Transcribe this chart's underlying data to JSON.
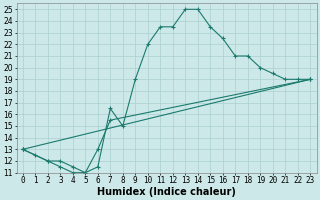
{
  "xlabel": "Humidex (Indice chaleur)",
  "xlim": [
    -0.5,
    23.5
  ],
  "ylim": [
    11,
    25.5
  ],
  "yticks": [
    11,
    12,
    13,
    14,
    15,
    16,
    17,
    18,
    19,
    20,
    21,
    22,
    23,
    24,
    25
  ],
  "xticks": [
    0,
    1,
    2,
    3,
    4,
    5,
    6,
    7,
    8,
    9,
    10,
    11,
    12,
    13,
    14,
    15,
    16,
    17,
    18,
    19,
    20,
    21,
    22,
    23
  ],
  "bg_color": "#cde8e8",
  "grid_color": "#aacfcf",
  "line_color": "#1a7a6e",
  "line1_x": [
    0,
    1,
    2,
    3,
    4,
    5,
    6,
    7,
    8,
    9,
    10,
    11,
    12,
    13,
    14,
    15,
    16,
    17,
    18,
    19,
    20,
    21,
    22,
    23
  ],
  "line1_y": [
    13,
    12.5,
    12,
    11.5,
    11,
    11,
    11.5,
    16.5,
    15,
    19,
    22,
    23.5,
    23.5,
    25,
    25,
    23.5,
    22.5,
    21,
    21,
    20,
    19.5,
    19,
    19,
    19
  ],
  "line2_x": [
    0,
    2,
    3,
    4,
    5,
    6,
    7,
    23
  ],
  "line2_y": [
    13,
    12,
    12,
    11.5,
    11,
    13,
    15.5,
    19
  ],
  "line3_x": [
    0,
    23
  ],
  "line3_y": [
    13,
    19
  ],
  "tick_fontsize": 5.5,
  "label_fontsize": 7
}
